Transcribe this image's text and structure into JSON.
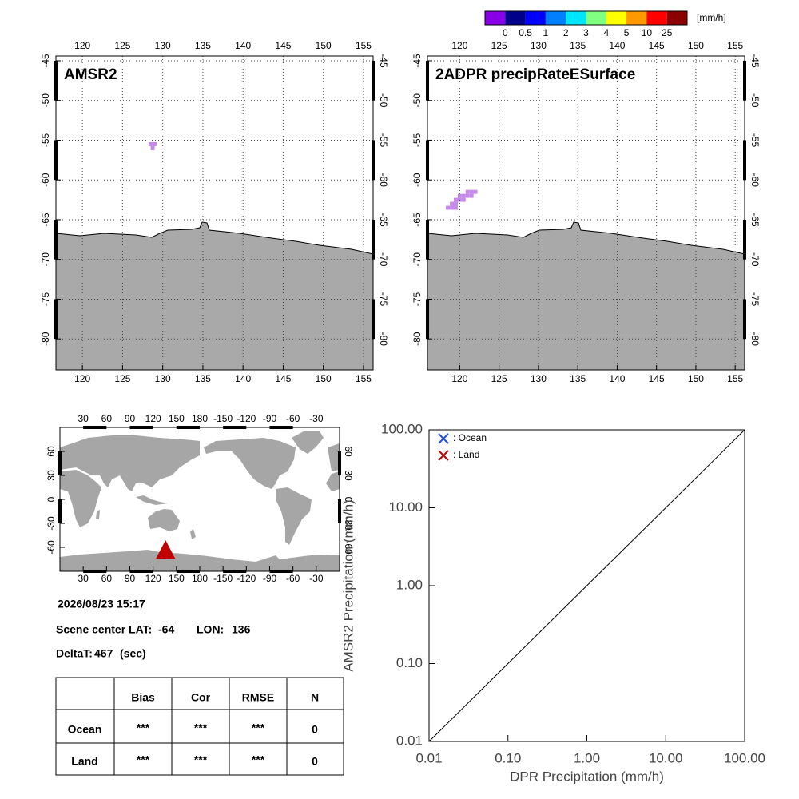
{
  "colorbar": {
    "colors": [
      "#8800e8",
      "#00008b",
      "#0000ff",
      "#0080ff",
      "#00e5ff",
      "#80ff80",
      "#ffff00",
      "#ff9900",
      "#ff0000",
      "#8b0000"
    ],
    "labels": [
      0,
      0.5,
      1,
      2,
      3,
      4,
      5,
      10,
      25
    ],
    "unit": "[mm/h]"
  },
  "chart_data": [
    {
      "type": "map",
      "title": "AMSR2",
      "xlim": [
        116.7,
        156.2
      ],
      "ylim": [
        -44.4,
        -83.9
      ],
      "xticks": [
        120,
        125,
        130,
        135,
        140,
        145,
        150,
        155
      ],
      "yticks": [
        -45,
        -50,
        -55,
        -60,
        -65,
        -70,
        -75,
        -80
      ],
      "grid": true,
      "color": "#c58ae8",
      "x": [
        128.5,
        129.0,
        128.75
      ],
      "y": [
        -55.5,
        -55.5,
        -56.0
      ]
    },
    {
      "type": "map",
      "title": "2ADPR precipRateESurface",
      "xlim": [
        115.9,
        156.2
      ],
      "ylim": [
        -44.4,
        -83.9
      ],
      "xticks": [
        120,
        125,
        130,
        135,
        140,
        145,
        150,
        155
      ],
      "yticks": [
        -45,
        -50,
        -55,
        -60,
        -65,
        -70,
        -75,
        -80
      ],
      "grid": true,
      "color": "#c58ae8",
      "x": [
        121,
        121.5,
        122,
        120,
        120.5,
        121,
        121.5,
        119.5,
        120,
        120.5,
        119,
        119.5,
        118.5,
        119,
        119.5
      ],
      "y": [
        -61.5,
        -61.5,
        -61.5,
        -62,
        -62,
        -62,
        -62,
        -62.5,
        -62.5,
        -62.5,
        -63,
        -63,
        -63.5,
        -63.5,
        -63.5
      ]
    },
    {
      "type": "globe",
      "xlim": [
        0,
        360
      ],
      "ylim": [
        90,
        -90
      ],
      "marker_color": "#c00000",
      "xticks": [
        30,
        60,
        90,
        120,
        150,
        180,
        {
          "value": 210,
          "label": "-150"
        },
        {
          "value": 240,
          "label": "-120"
        },
        {
          "value": 270,
          "label": "-90"
        },
        {
          "value": 300,
          "label": "-60"
        },
        {
          "value": 330,
          "label": "-30"
        }
      ],
      "yticks": [
        60,
        30,
        0,
        -30,
        -60
      ]
    },
    {
      "type": "scatter",
      "log": true,
      "xlabel": "DPR Precipitation (mm/h)",
      "ylabel": "AMSR2 Precipitation (mm/h)",
      "xlim": [
        0.01,
        100
      ],
      "ylim": [
        0.01,
        100
      ],
      "xticks": [
        {
          "value": 0.01,
          "label": "0.01"
        },
        {
          "value": 0.1,
          "label": "0.10"
        },
        {
          "value": 1,
          "label": "1.00"
        },
        {
          "value": 10,
          "label": "10.00"
        },
        {
          "value": 100,
          "label": "100.00"
        }
      ],
      "yticks": [
        {
          "value": 0.01,
          "label": "0.01"
        },
        {
          "value": 0.1,
          "label": "0.10"
        },
        {
          "value": 1,
          "label": "1.00"
        },
        {
          "value": 10,
          "label": "10.00"
        },
        {
          "value": 100,
          "label": "100.00"
        }
      ],
      "series": [
        {
          "name": ": Ocean",
          "color": "#1f4fd8",
          "x": [],
          "values": []
        },
        {
          "name": ": Land",
          "color": "#c00000",
          "x": [],
          "values": []
        }
      ]
    }
  ],
  "info": {
    "datetime": "2026/08/23 15:17",
    "scene_label": "Scene center LAT:",
    "lat": -64,
    "lon_label": "LON:",
    "lon": 136,
    "deltat_label": "DeltaT:",
    "deltat": 467,
    "deltat_unit": "(sec)"
  },
  "table": {
    "header": [
      "Bias",
      "Cor",
      "RMSE",
      "N"
    ],
    "rows": [
      [
        "Ocean",
        "***",
        "***",
        "***",
        0
      ],
      [
        "Land",
        "***",
        "***",
        "***",
        0
      ]
    ]
  }
}
